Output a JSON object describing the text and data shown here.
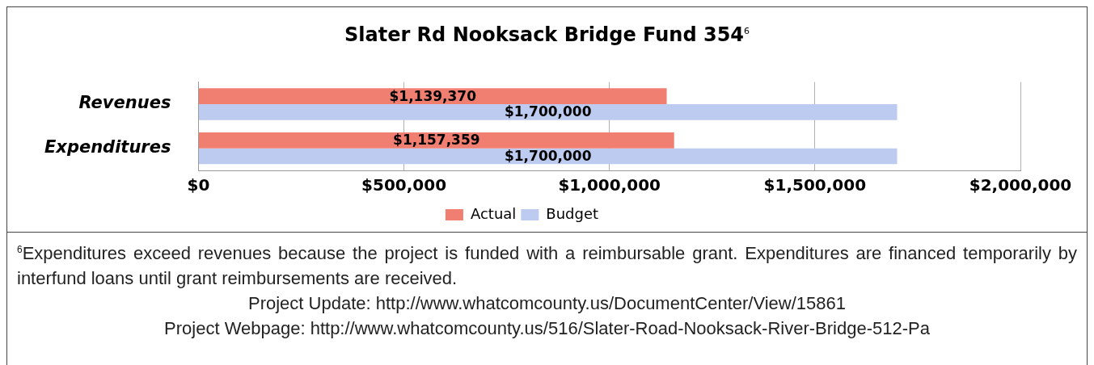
{
  "chart_data": {
    "type": "bar",
    "orientation": "horizontal",
    "title": "Slater Rd Nooksack Bridge Fund 354$^{6}$",
    "categories": [
      "Revenues",
      "Expenditures"
    ],
    "series": [
      {
        "name": "Actual",
        "color": "#f07f72",
        "values": [
          1139370,
          1157359
        ],
        "value_labels": [
          "$1,139,370",
          "$1,157,359"
        ]
      },
      {
        "name": "Budget",
        "color": "#bccbef",
        "values": [
          1700000,
          1700000
        ],
        "value_labels": [
          "$1,700,000",
          "$1,700,000"
        ]
      }
    ],
    "xlim": [
      0,
      2000000
    ],
    "xticks": [
      {
        "value": 0,
        "label": "$0"
      },
      {
        "value": 500000,
        "label": "$500,000"
      },
      {
        "value": 1000000,
        "label": "$1,000,000"
      },
      {
        "value": 1500000,
        "label": "$1,500,000"
      },
      {
        "value": 2000000,
        "label": "$2,000,000"
      }
    ],
    "grid": "x",
    "legend": "bottom",
    "annotations": [
      "$^{6}$Expenditures exceed revenues because the project is funded with a reimbursable grant. Expenditures are financed temporarily by interfund loans until grant reimbursements are received.",
      "Project Update: http://www.whatcomcounty.us/DocumentCenter/View/15861",
      "Project Webpage: http://www.whatcomcounty.us/516/Slater-Road-Nooksack-River-Bridge-512-Pa"
    ]
  }
}
